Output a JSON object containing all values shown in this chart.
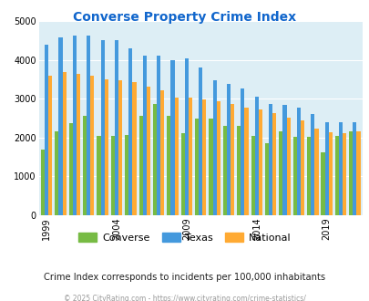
{
  "title": "Converse Property Crime Index",
  "years": [
    1999,
    2000,
    2001,
    2002,
    2003,
    2004,
    2005,
    2006,
    2007,
    2008,
    2009,
    2010,
    2011,
    2012,
    2013,
    2014,
    2015,
    2016,
    2017,
    2018,
    2019,
    2020,
    2021
  ],
  "converse": [
    1680,
    2150,
    2360,
    2550,
    2050,
    2050,
    2060,
    2550,
    2870,
    2550,
    2110,
    2490,
    2500,
    2290,
    2310,
    2050,
    1850,
    2150,
    2010,
    2010,
    1620,
    2040,
    2150
  ],
  "texas": [
    4400,
    4580,
    4620,
    4620,
    4520,
    4500,
    4300,
    4100,
    4120,
    4000,
    4040,
    3800,
    3480,
    3390,
    3270,
    3050,
    2860,
    2830,
    2780,
    2600,
    2390,
    2400,
    2400
  ],
  "national": [
    3600,
    3680,
    3640,
    3600,
    3500,
    3480,
    3420,
    3320,
    3220,
    3040,
    3020,
    2980,
    2930,
    2870,
    2760,
    2720,
    2620,
    2510,
    2450,
    2220,
    2140,
    2110,
    2150
  ],
  "converse_color": "#77bb44",
  "texas_color": "#4499dd",
  "national_color": "#ffaa33",
  "bg_color": "#ddeef5",
  "title_color": "#1166cc",
  "ylim": [
    0,
    5000
  ],
  "yticks": [
    0,
    1000,
    2000,
    3000,
    4000,
    5000
  ],
  "xtick_years": [
    1999,
    2004,
    2009,
    2014,
    2019
  ],
  "subtitle": "Crime Index corresponds to incidents per 100,000 inhabitants",
  "footer": "© 2025 CityRating.com - https://www.cityrating.com/crime-statistics/",
  "legend_labels": [
    "Converse",
    "Texas",
    "National"
  ]
}
